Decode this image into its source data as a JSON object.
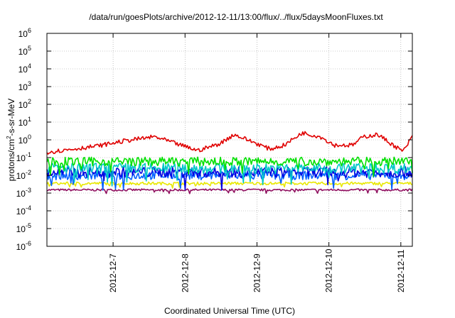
{
  "chart_data": {
    "type": "line",
    "title": "/data/run/goesPlots/archive/2012-12-11/13:00/flux/../flux/5daysMoonFluxes.txt",
    "xlabel": "Coordinated Universal Time (UTC)",
    "ylabel": {
      "base": "protons/cm",
      "sup": "2",
      "rest": "-s-sr-MeV"
    },
    "yscale": "log",
    "ylim_exp": [
      -6,
      6
    ],
    "y_ticks": [
      {
        "exp": 6,
        "base": "10",
        "sup": "6"
      },
      {
        "exp": 5,
        "base": "10",
        "sup": "5"
      },
      {
        "exp": 4,
        "base": "10",
        "sup": "4"
      },
      {
        "exp": 3,
        "base": "10",
        "sup": "3"
      },
      {
        "exp": 2,
        "base": "10",
        "sup": "2"
      },
      {
        "exp": 1,
        "base": "10",
        "sup": "1"
      },
      {
        "exp": 0,
        "base": "10",
        "sup": "0"
      },
      {
        "exp": -1,
        "base": "10",
        "sup": "-1"
      },
      {
        "exp": -2,
        "base": "10",
        "sup": "-2"
      },
      {
        "exp": -3,
        "base": "10",
        "sup": "-3"
      },
      {
        "exp": -4,
        "base": "10",
        "sup": "-4"
      },
      {
        "exp": -5,
        "base": "10",
        "sup": "-5"
      },
      {
        "exp": -6,
        "base": "10",
        "sup": "-6"
      }
    ],
    "xlim_days": [
      0,
      5.08
    ],
    "x_ticks": [
      {
        "day": 0.92,
        "label": "2012-12-7"
      },
      {
        "day": 1.92,
        "label": "2012-12-8"
      },
      {
        "day": 2.92,
        "label": "2012-12-9"
      },
      {
        "day": 3.92,
        "label": "2012-12-10"
      },
      {
        "day": 4.92,
        "label": "2012-12-11"
      }
    ],
    "grid": true,
    "legend": "none",
    "series_count": 7,
    "series": [
      {
        "color": "#e00000",
        "level": 0.55,
        "noise": 0.12,
        "segments": [
          [
            0,
            0.2
          ],
          [
            0.3,
            0.28
          ],
          [
            0.7,
            0.45
          ],
          [
            1.1,
            0.9
          ],
          [
            1.5,
            1.5
          ],
          [
            1.8,
            0.6
          ],
          [
            2.1,
            0.25
          ],
          [
            2.4,
            0.6
          ],
          [
            2.6,
            2.0
          ],
          [
            2.85,
            0.8
          ],
          [
            3.1,
            0.3
          ],
          [
            3.3,
            0.5
          ],
          [
            3.55,
            2.5
          ],
          [
            3.8,
            1.5
          ],
          [
            4.0,
            0.5
          ],
          [
            4.25,
            0.5
          ],
          [
            4.4,
            1.5
          ],
          [
            4.6,
            2.0
          ],
          [
            4.85,
            0.4
          ],
          [
            4.95,
            0.22
          ],
          [
            5.08,
            1.5
          ]
        ]
      },
      {
        "color": "#00e000",
        "level": 0.06,
        "noise": 0.25,
        "segments": []
      },
      {
        "color": "#00c8c8",
        "level": 0.025,
        "noise": 0.3,
        "segments": []
      },
      {
        "color": "#0000e0",
        "level": 0.015,
        "noise": 0.3,
        "segments": []
      },
      {
        "color": "#0060ff",
        "level": 0.01,
        "noise": 0.25,
        "segments": []
      },
      {
        "color": "#e8e800",
        "level": 0.0035,
        "noise": 0.08,
        "segments": []
      },
      {
        "color": "#901060",
        "level": 0.0015,
        "noise": 0.06,
        "segments": []
      }
    ]
  }
}
